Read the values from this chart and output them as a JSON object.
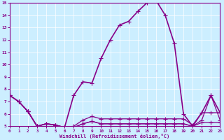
{
  "xlabel": "Windchill (Refroidissement éolien,°C)",
  "bg_color": "#cceeff",
  "grid_color": "#ffffff",
  "line_color": "#880088",
  "xlim": [
    0,
    23
  ],
  "ylim": [
    5,
    15
  ],
  "yticks": [
    5,
    6,
    7,
    8,
    9,
    10,
    11,
    12,
    13,
    14,
    15
  ],
  "xticks": [
    0,
    1,
    2,
    3,
    4,
    5,
    6,
    7,
    8,
    9,
    10,
    11,
    12,
    13,
    14,
    15,
    16,
    17,
    18,
    19,
    20,
    21,
    22,
    23
  ],
  "series": [
    [
      7.5,
      7.0,
      6.2,
      5.0,
      5.2,
      5.1,
      4.9,
      7.5,
      8.6,
      8.5,
      10.5,
      12.0,
      13.2,
      13.5,
      14.3,
      15.0,
      15.2,
      14.0,
      11.7,
      6.0,
      5.0,
      6.1,
      7.5,
      6.1
    ],
    [
      7.5,
      7.0,
      6.2,
      5.0,
      5.2,
      5.1,
      4.9,
      5.0,
      5.5,
      5.8,
      5.6,
      5.6,
      5.6,
      5.6,
      5.6,
      5.6,
      5.6,
      5.6,
      5.6,
      5.6,
      5.1,
      6.1,
      6.1,
      6.1
    ],
    [
      7.5,
      7.0,
      6.2,
      5.0,
      5.2,
      5.1,
      4.9,
      4.9,
      5.2,
      5.4,
      5.2,
      5.2,
      5.2,
      5.2,
      5.2,
      5.2,
      5.2,
      5.2,
      5.2,
      5.2,
      5.0,
      5.5,
      7.5,
      5.5
    ],
    [
      7.5,
      7.0,
      6.2,
      5.0,
      5.2,
      5.1,
      4.9,
      4.9,
      5.2,
      5.4,
      5.2,
      5.2,
      5.2,
      5.2,
      5.2,
      5.2,
      5.2,
      5.2,
      5.2,
      5.2,
      5.0,
      5.3,
      5.3,
      5.3
    ]
  ],
  "linewidths": [
    1.2,
    0.9,
    0.9,
    0.9
  ],
  "marker_size": 2.0
}
